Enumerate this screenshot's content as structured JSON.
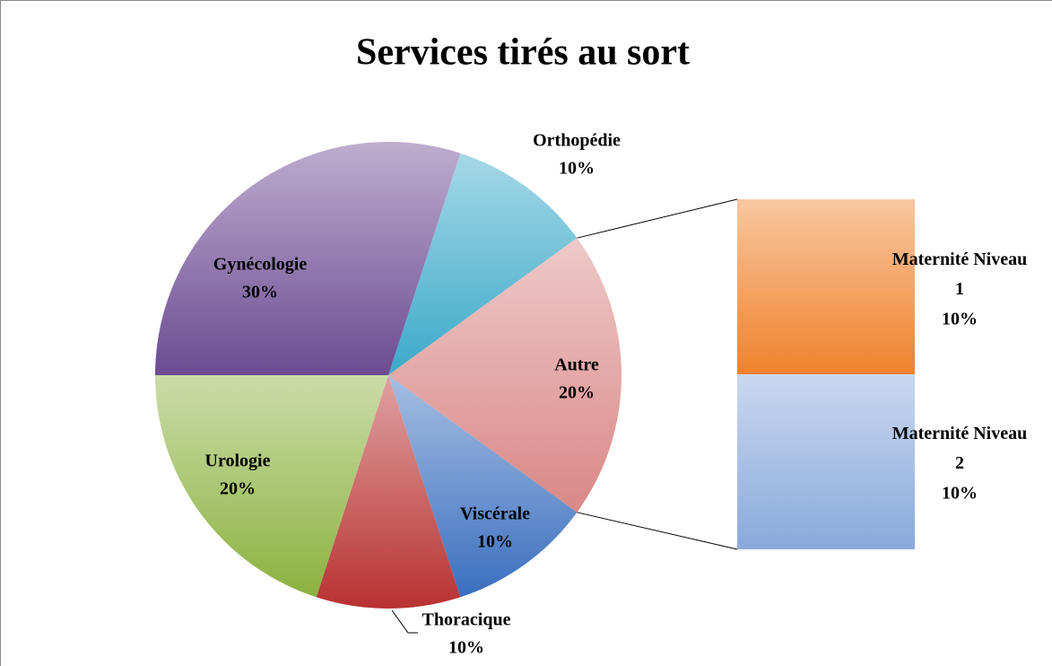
{
  "chart_data": {
    "type": "pie",
    "title": "Services tirés au sort",
    "categories": [
      "Orthopédie",
      "Autre",
      "Viscérale",
      "Thoracique",
      "Urologie",
      "Gynécologie"
    ],
    "values": [
      10,
      20,
      10,
      10,
      20,
      30
    ],
    "value_labels": [
      "10%",
      "20%",
      "10%",
      "10%",
      "20%",
      "30%"
    ],
    "colors": [
      "#3aa9c9",
      "#d98886",
      "#3a6fbf",
      "#b83131",
      "#8bb23f",
      "#6c4b93"
    ],
    "breakout": {
      "categories": [
        "Maternité Niveau 1",
        "Maternité Niveau 2"
      ],
      "values": [
        10,
        10
      ],
      "value_labels": [
        "10%",
        "10%"
      ],
      "colors": [
        "#f0822c",
        "#89a9dc"
      ]
    }
  }
}
